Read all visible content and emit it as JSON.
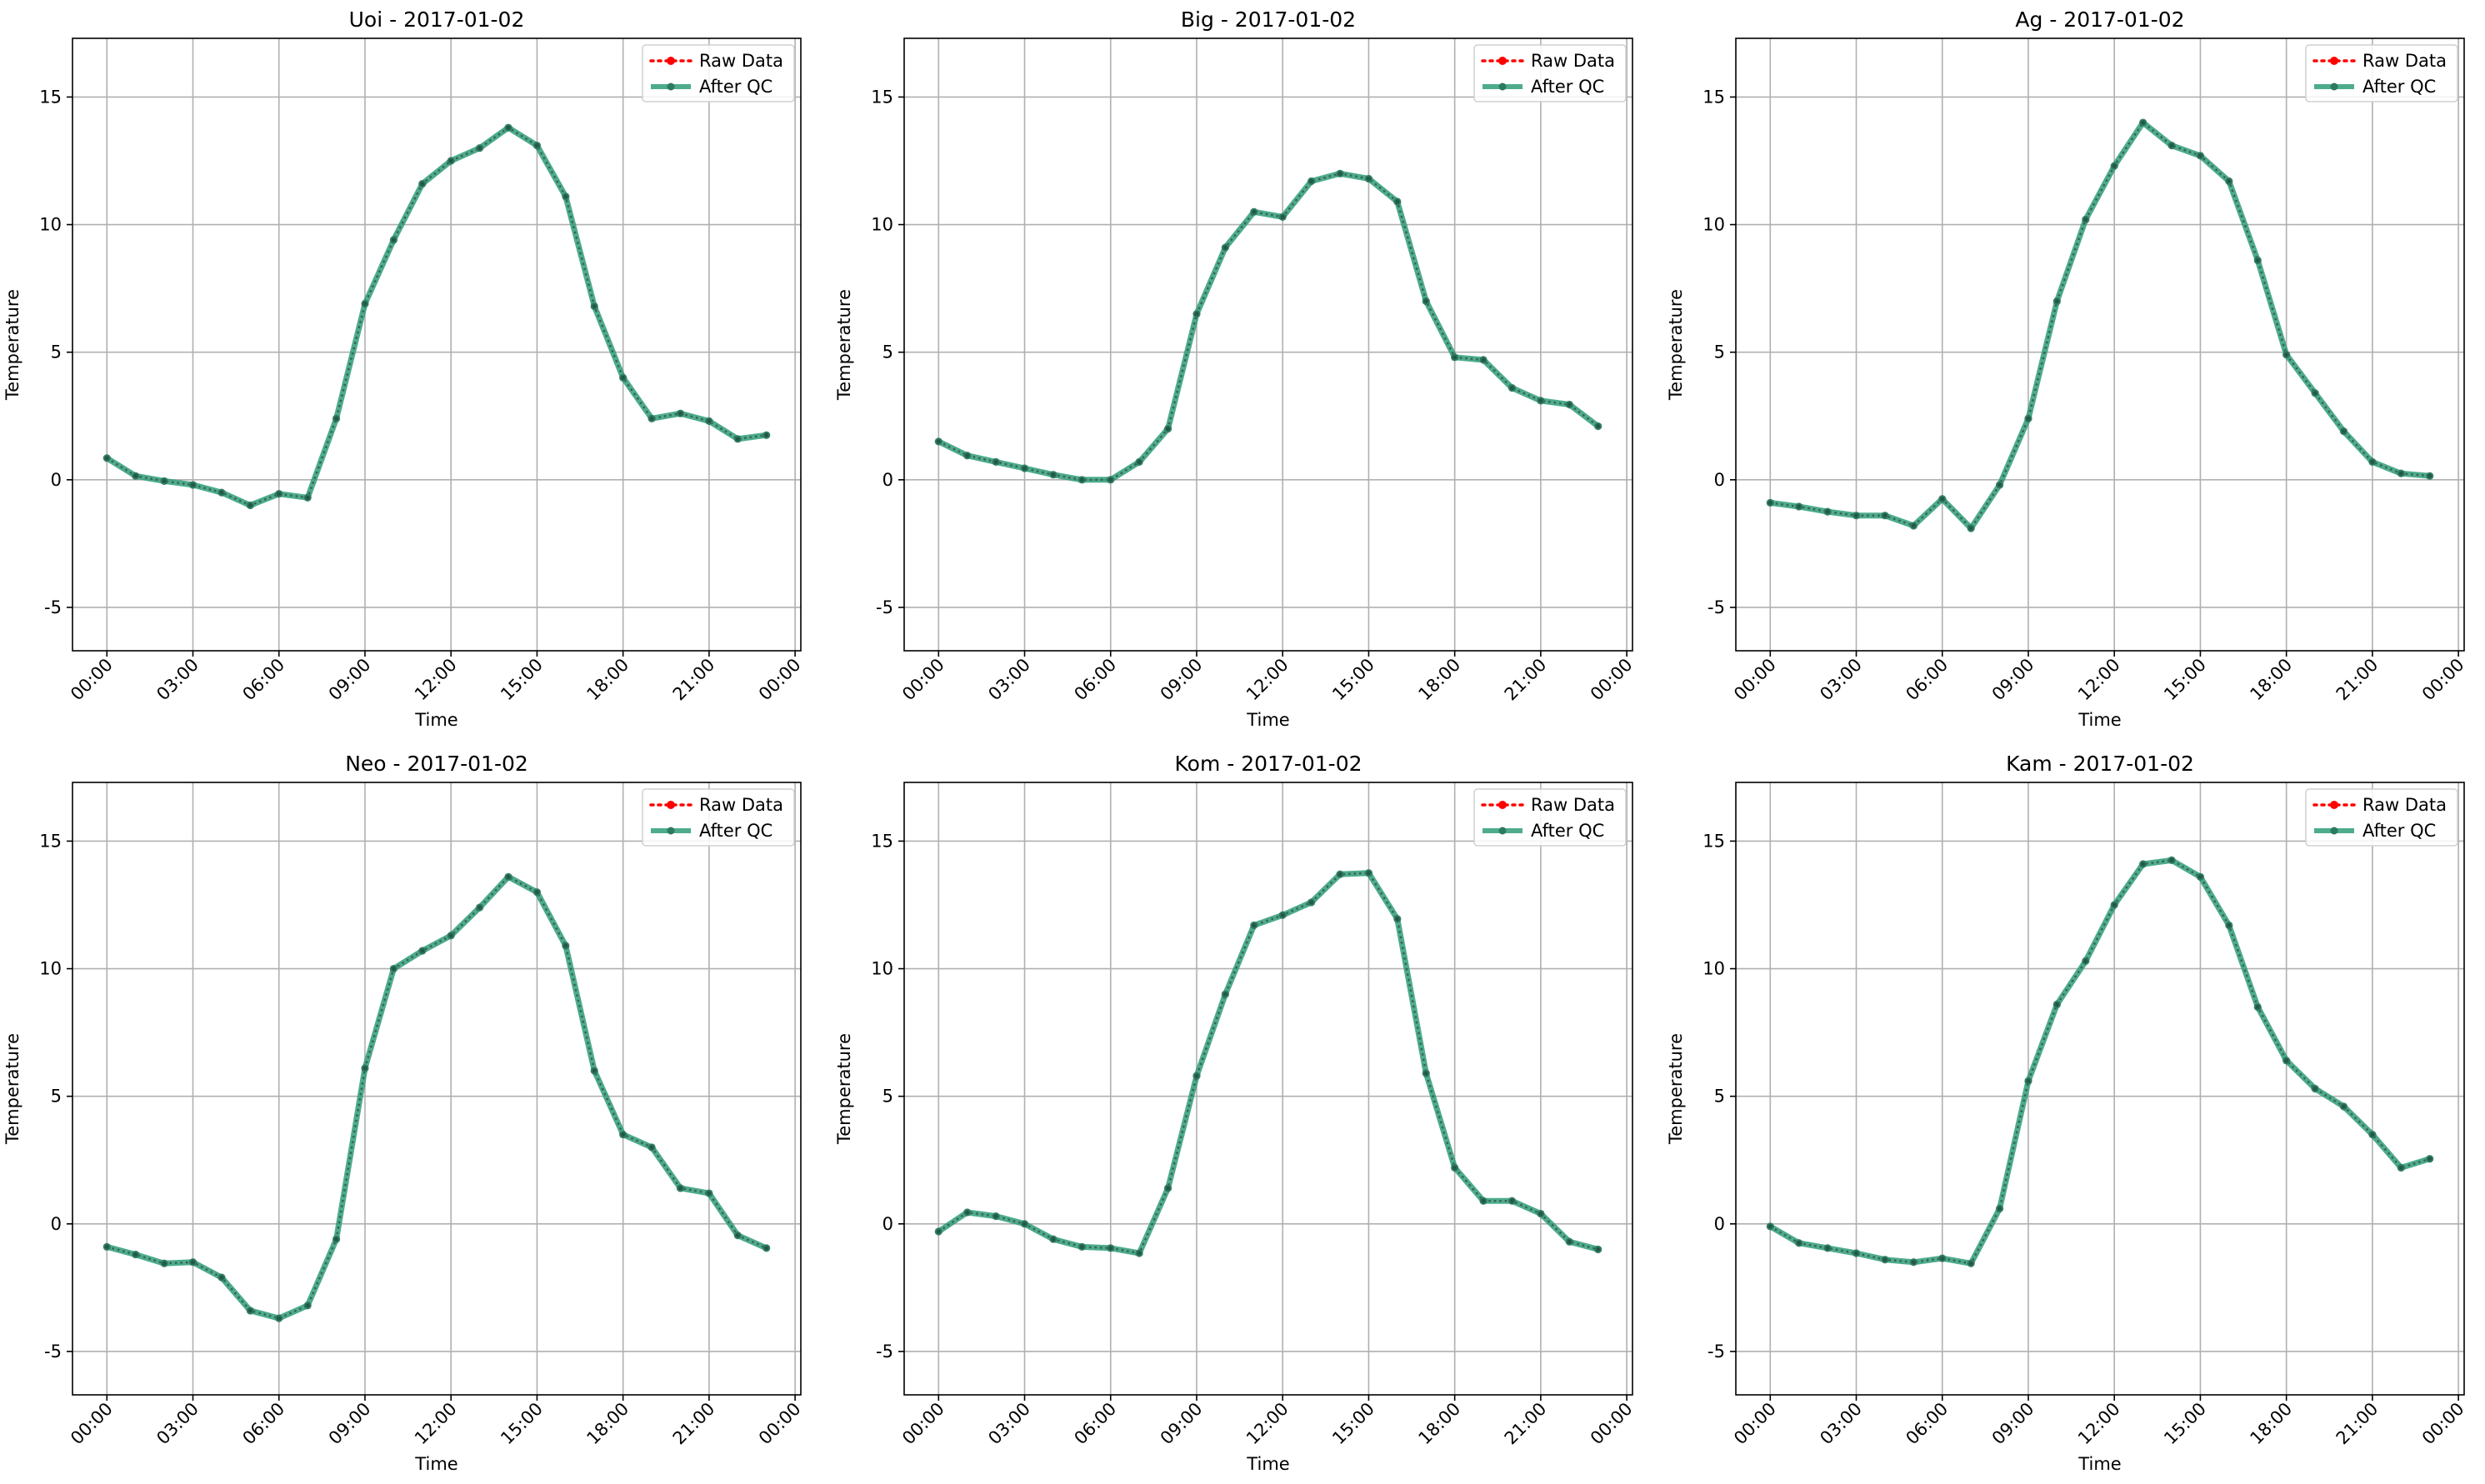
{
  "chart_data": [
    {
      "type": "line",
      "title": "Uoi - 2017-01-02",
      "xlabel": "Time",
      "ylabel": "Temperature",
      "xlim": [
        -1.2,
        24.2
      ],
      "ylim": [
        -6.7,
        17.3
      ],
      "yticks": [
        -5,
        0,
        5,
        10,
        15
      ],
      "xticks": [
        0,
        3,
        6,
        9,
        12,
        15,
        18,
        21,
        24
      ],
      "xtick_labels": [
        "00:00",
        "03:00",
        "06:00",
        "09:00",
        "12:00",
        "15:00",
        "18:00",
        "21:00",
        "00:00"
      ],
      "grid": true,
      "legend_position": "top-right",
      "x": [
        0,
        1,
        2,
        3,
        4,
        5,
        6,
        7,
        8,
        9,
        10,
        11,
        12,
        13,
        14,
        15,
        16,
        17,
        18,
        19,
        20,
        21,
        22,
        23
      ],
      "series": [
        {
          "name": "Raw Data",
          "color": "#ff0000",
          "style": "dotted",
          "values": [
            0.85,
            0.15,
            -0.05,
            -0.2,
            -0.5,
            -1.0,
            -0.55,
            -0.7,
            2.4,
            6.9,
            9.4,
            11.6,
            12.5,
            13.0,
            13.8,
            13.1,
            11.1,
            6.8,
            4.0,
            2.4,
            2.6,
            2.3,
            1.6,
            1.75
          ]
        },
        {
          "name": "After QC",
          "color": "#2e9d78",
          "style": "solid",
          "values": [
            0.85,
            0.15,
            -0.05,
            -0.2,
            -0.5,
            -1.0,
            -0.55,
            -0.7,
            2.4,
            6.9,
            9.4,
            11.6,
            12.5,
            13.0,
            13.8,
            13.1,
            11.1,
            6.8,
            4.0,
            2.4,
            2.6,
            2.3,
            1.6,
            1.75
          ]
        }
      ]
    },
    {
      "type": "line",
      "title": "Big - 2017-01-02",
      "xlabel": "Time",
      "ylabel": "Temperature",
      "xlim": [
        -1.2,
        24.2
      ],
      "ylim": [
        -6.7,
        17.3
      ],
      "yticks": [
        -5,
        0,
        5,
        10,
        15
      ],
      "xticks": [
        0,
        3,
        6,
        9,
        12,
        15,
        18,
        21,
        24
      ],
      "xtick_labels": [
        "00:00",
        "03:00",
        "06:00",
        "09:00",
        "12:00",
        "15:00",
        "18:00",
        "21:00",
        "00:00"
      ],
      "grid": true,
      "legend_position": "top-right",
      "x": [
        0,
        1,
        2,
        3,
        4,
        5,
        6,
        7,
        8,
        9,
        10,
        11,
        12,
        13,
        14,
        15,
        16,
        17,
        18,
        19,
        20,
        21,
        22,
        23
      ],
      "series": [
        {
          "name": "Raw Data",
          "color": "#ff0000",
          "style": "dotted",
          "values": [
            1.5,
            0.95,
            0.7,
            0.45,
            0.2,
            0.0,
            0.0,
            0.7,
            2.0,
            6.5,
            9.1,
            10.5,
            10.3,
            11.7,
            12.0,
            11.8,
            10.9,
            7.0,
            4.8,
            4.7,
            3.6,
            3.1,
            2.95,
            2.1
          ]
        },
        {
          "name": "After QC",
          "color": "#2e9d78",
          "style": "solid",
          "values": [
            1.5,
            0.95,
            0.7,
            0.45,
            0.2,
            0.0,
            0.0,
            0.7,
            2.0,
            6.5,
            9.1,
            10.5,
            10.3,
            11.7,
            12.0,
            11.8,
            10.9,
            7.0,
            4.8,
            4.7,
            3.6,
            3.1,
            2.95,
            2.1
          ]
        }
      ]
    },
    {
      "type": "line",
      "title": "Ag - 2017-01-02",
      "xlabel": "Time",
      "ylabel": "Temperature",
      "xlim": [
        -1.2,
        24.2
      ],
      "ylim": [
        -6.7,
        17.3
      ],
      "yticks": [
        -5,
        0,
        5,
        10,
        15
      ],
      "xticks": [
        0,
        3,
        6,
        9,
        12,
        15,
        18,
        21,
        24
      ],
      "xtick_labels": [
        "00:00",
        "03:00",
        "06:00",
        "09:00",
        "12:00",
        "15:00",
        "18:00",
        "21:00",
        "00:00"
      ],
      "grid": true,
      "legend_position": "top-right",
      "x": [
        0,
        1,
        2,
        3,
        4,
        5,
        6,
        7,
        8,
        9,
        10,
        11,
        12,
        13,
        14,
        15,
        16,
        17,
        18,
        19,
        20,
        21,
        22,
        23
      ],
      "series": [
        {
          "name": "Raw Data",
          "color": "#ff0000",
          "style": "dotted",
          "values": [
            -0.9,
            -1.05,
            -1.25,
            -1.4,
            -1.4,
            -1.8,
            -0.75,
            -1.9,
            -0.2,
            2.4,
            7.0,
            10.2,
            12.3,
            14.0,
            13.1,
            12.7,
            11.7,
            8.6,
            4.9,
            3.4,
            1.9,
            0.7,
            0.25,
            0.15
          ]
        },
        {
          "name": "After QC",
          "color": "#2e9d78",
          "style": "solid",
          "values": [
            -0.9,
            -1.05,
            -1.25,
            -1.4,
            -1.4,
            -1.8,
            -0.75,
            -1.9,
            -0.2,
            2.4,
            7.0,
            10.2,
            12.3,
            14.0,
            13.1,
            12.7,
            11.7,
            8.6,
            4.9,
            3.4,
            1.9,
            0.7,
            0.25,
            0.15
          ]
        }
      ]
    },
    {
      "type": "line",
      "title": "Neo - 2017-01-02",
      "xlabel": "Time",
      "ylabel": "Temperature",
      "xlim": [
        -1.2,
        24.2
      ],
      "ylim": [
        -6.7,
        17.3
      ],
      "yticks": [
        -5,
        0,
        5,
        10,
        15
      ],
      "xticks": [
        0,
        3,
        6,
        9,
        12,
        15,
        18,
        21,
        24
      ],
      "xtick_labels": [
        "00:00",
        "03:00",
        "06:00",
        "09:00",
        "12:00",
        "15:00",
        "18:00",
        "21:00",
        "00:00"
      ],
      "grid": true,
      "legend_position": "top-right",
      "x": [
        0,
        1,
        2,
        3,
        4,
        5,
        6,
        7,
        8,
        9,
        10,
        11,
        12,
        13,
        14,
        15,
        16,
        17,
        18,
        19,
        20,
        21,
        22,
        23
      ],
      "series": [
        {
          "name": "Raw Data",
          "color": "#ff0000",
          "style": "dotted",
          "values": [
            -0.9,
            -1.2,
            -1.55,
            -1.5,
            -2.1,
            -3.4,
            -3.7,
            -3.2,
            -0.6,
            6.1,
            10.0,
            10.7,
            11.3,
            12.4,
            13.6,
            13.0,
            10.9,
            6.0,
            3.5,
            3.0,
            1.4,
            1.2,
            -0.45,
            -0.95
          ]
        },
        {
          "name": "After QC",
          "color": "#2e9d78",
          "style": "solid",
          "values": [
            -0.9,
            -1.2,
            -1.55,
            -1.5,
            -2.1,
            -3.4,
            -3.7,
            -3.2,
            -0.6,
            6.1,
            10.0,
            10.7,
            11.3,
            12.4,
            13.6,
            13.0,
            10.9,
            6.0,
            3.5,
            3.0,
            1.4,
            1.2,
            -0.45,
            -0.95
          ]
        }
      ]
    },
    {
      "type": "line",
      "title": "Kom - 2017-01-02",
      "xlabel": "Time",
      "ylabel": "Temperature",
      "xlim": [
        -1.2,
        24.2
      ],
      "ylim": [
        -6.7,
        17.3
      ],
      "yticks": [
        -5,
        0,
        5,
        10,
        15
      ],
      "xticks": [
        0,
        3,
        6,
        9,
        12,
        15,
        18,
        21,
        24
      ],
      "xtick_labels": [
        "00:00",
        "03:00",
        "06:00",
        "09:00",
        "12:00",
        "15:00",
        "18:00",
        "21:00",
        "00:00"
      ],
      "grid": true,
      "legend_position": "top-right",
      "x": [
        0,
        1,
        2,
        3,
        4,
        5,
        6,
        7,
        8,
        9,
        10,
        11,
        12,
        13,
        14,
        15,
        16,
        17,
        18,
        19,
        20,
        21,
        22,
        23
      ],
      "series": [
        {
          "name": "Raw Data",
          "color": "#ff0000",
          "style": "dotted",
          "values": [
            -0.3,
            0.45,
            0.3,
            0.0,
            -0.6,
            -0.9,
            -0.95,
            -1.15,
            1.4,
            5.8,
            9.0,
            11.7,
            12.1,
            12.6,
            13.7,
            13.75,
            11.95,
            5.9,
            2.2,
            0.9,
            0.9,
            0.4,
            -0.7,
            -1.0
          ]
        },
        {
          "name": "After QC",
          "color": "#2e9d78",
          "style": "solid",
          "values": [
            -0.3,
            0.45,
            0.3,
            0.0,
            -0.6,
            -0.9,
            -0.95,
            -1.15,
            1.4,
            5.8,
            9.0,
            11.7,
            12.1,
            12.6,
            13.7,
            13.75,
            11.95,
            5.9,
            2.2,
            0.9,
            0.9,
            0.4,
            -0.7,
            -1.0
          ]
        }
      ]
    },
    {
      "type": "line",
      "title": "Kam - 2017-01-02",
      "xlabel": "Time",
      "ylabel": "Temperature",
      "xlim": [
        -1.2,
        24.2
      ],
      "ylim": [
        -6.7,
        17.3
      ],
      "yticks": [
        -5,
        0,
        5,
        10,
        15
      ],
      "xticks": [
        0,
        3,
        6,
        9,
        12,
        15,
        18,
        21,
        24
      ],
      "xtick_labels": [
        "00:00",
        "03:00",
        "06:00",
        "09:00",
        "12:00",
        "15:00",
        "18:00",
        "21:00",
        "00:00"
      ],
      "grid": true,
      "legend_position": "top-right",
      "x": [
        0,
        1,
        2,
        3,
        4,
        5,
        6,
        7,
        8,
        9,
        10,
        11,
        12,
        13,
        14,
        15,
        16,
        17,
        18,
        19,
        20,
        21,
        22,
        23
      ],
      "series": [
        {
          "name": "Raw Data",
          "color": "#ff0000",
          "style": "dotted",
          "values": [
            -0.1,
            -0.75,
            -0.95,
            -1.15,
            -1.4,
            -1.5,
            -1.35,
            -1.55,
            0.6,
            5.6,
            8.6,
            10.3,
            12.5,
            14.1,
            14.25,
            13.6,
            11.7,
            8.5,
            6.4,
            5.3,
            4.6,
            3.5,
            2.2,
            2.55
          ]
        },
        {
          "name": "After QC",
          "color": "#2e9d78",
          "style": "solid",
          "values": [
            -0.1,
            -0.75,
            -0.95,
            -1.15,
            -1.4,
            -1.5,
            -1.35,
            -1.55,
            0.6,
            5.6,
            8.6,
            10.3,
            12.5,
            14.1,
            14.25,
            13.6,
            11.7,
            8.5,
            6.4,
            5.3,
            4.6,
            3.5,
            2.2,
            2.55
          ]
        }
      ]
    }
  ]
}
